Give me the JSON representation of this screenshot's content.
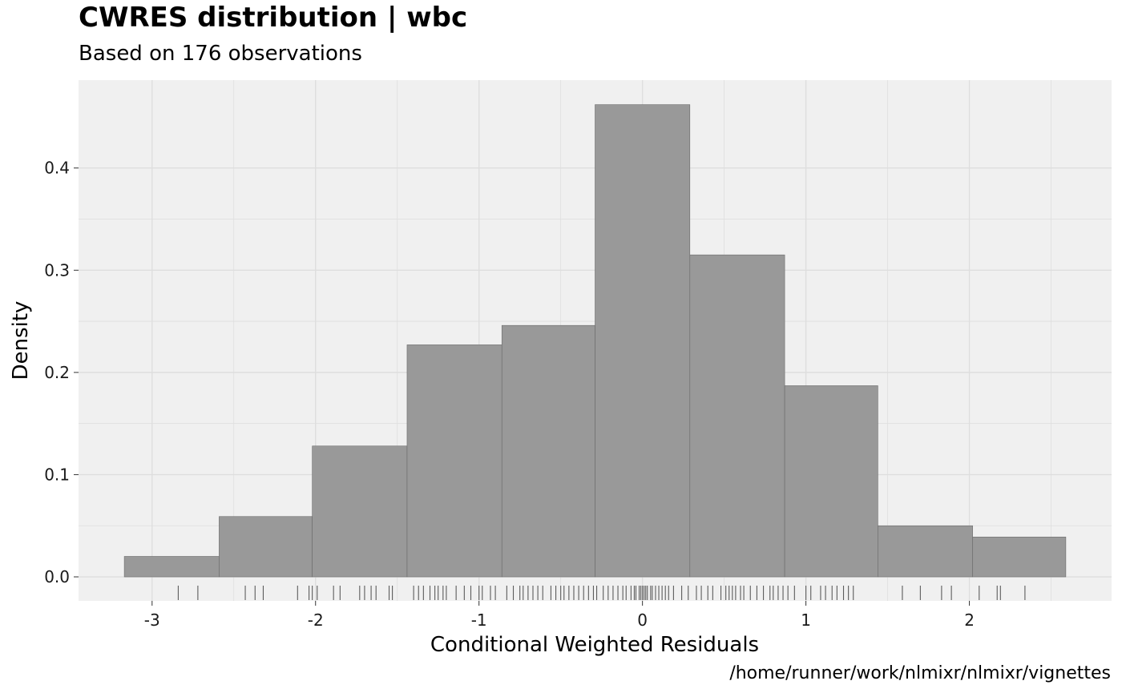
{
  "chart_data": {
    "type": "bar",
    "title": "CWRES distribution | wbc",
    "subtitle": "Based on 176 observations",
    "xlabel": "Conditional Weighted Residuals",
    "ylabel": "Density",
    "caption": "/home/runner/work/nlmixr/nlmixr/vignettes",
    "xlim": [
      -3.45,
      2.87
    ],
    "ylim": [
      -0.0235,
      0.486
    ],
    "x_ticks": [
      -3,
      -2,
      -1,
      0,
      1,
      2
    ],
    "x_tick_labels": [
      "-3",
      "-2",
      "-1",
      "0",
      "1",
      "2"
    ],
    "y_ticks": [
      0.0,
      0.1,
      0.2,
      0.3,
      0.4
    ],
    "y_tick_labels": [
      "0.0",
      "0.1",
      "0.2",
      "0.3",
      "0.4"
    ],
    "grid": true,
    "bins": [
      {
        "x0": -3.17,
        "x1": -2.59,
        "density": 0.02
      },
      {
        "x0": -2.59,
        "x1": -2.02,
        "density": 0.059
      },
      {
        "x0": -2.02,
        "x1": -1.44,
        "density": 0.128
      },
      {
        "x0": -1.44,
        "x1": -0.86,
        "density": 0.227
      },
      {
        "x0": -0.86,
        "x1": -0.29,
        "density": 0.246
      },
      {
        "x0": -0.29,
        "x1": 0.29,
        "density": 0.462
      },
      {
        "x0": 0.29,
        "x1": 0.87,
        "density": 0.315
      },
      {
        "x0": 0.87,
        "x1": 1.44,
        "density": 0.187
      },
      {
        "x0": 1.44,
        "x1": 2.02,
        "density": 0.05
      },
      {
        "x0": 2.02,
        "x1": 2.59,
        "density": 0.039
      }
    ],
    "rug": [
      -2.84,
      -2.72,
      -2.43,
      -2.37,
      -2.32,
      -2.11,
      -2.04,
      -2.02,
      -1.99,
      -1.89,
      -1.85,
      -1.73,
      -1.7,
      -1.66,
      -1.63,
      -1.55,
      -1.53,
      -1.4,
      -1.37,
      -1.34,
      -1.3,
      -1.27,
      -1.25,
      -1.22,
      -1.2,
      -1.14,
      -1.09,
      -1.05,
      -1.0,
      -0.98,
      -0.93,
      -0.9,
      -0.83,
      -0.79,
      -0.75,
      -0.73,
      -0.7,
      -0.67,
      -0.64,
      -0.61,
      -0.56,
      -0.53,
      -0.5,
      -0.48,
      -0.45,
      -0.42,
      -0.39,
      -0.36,
      -0.33,
      -0.3,
      -0.28,
      -0.24,
      -0.21,
      -0.18,
      -0.15,
      -0.12,
      -0.1,
      -0.07,
      -0.05,
      -0.04,
      -0.02,
      -0.01,
      0.0,
      0.01,
      0.02,
      0.03,
      0.05,
      0.06,
      0.08,
      0.1,
      0.12,
      0.14,
      0.16,
      0.19,
      0.24,
      0.28,
      0.33,
      0.36,
      0.4,
      0.43,
      0.48,
      0.51,
      0.53,
      0.55,
      0.57,
      0.6,
      0.62,
      0.66,
      0.7,
      0.74,
      0.78,
      0.8,
      0.83,
      0.86,
      0.89,
      0.93,
      1.0,
      1.03,
      1.09,
      1.12,
      1.16,
      1.19,
      1.23,
      1.26,
      1.29,
      1.59,
      1.7,
      1.83,
      1.89,
      2.06,
      2.17,
      2.19,
      2.34
    ]
  },
  "colors": {
    "panel_background": "#f0f0f0",
    "grid": "#dedede",
    "bar_fill": "#999999",
    "bar_stroke": "#6a6a6a",
    "rug": "#5c5c5c"
  }
}
